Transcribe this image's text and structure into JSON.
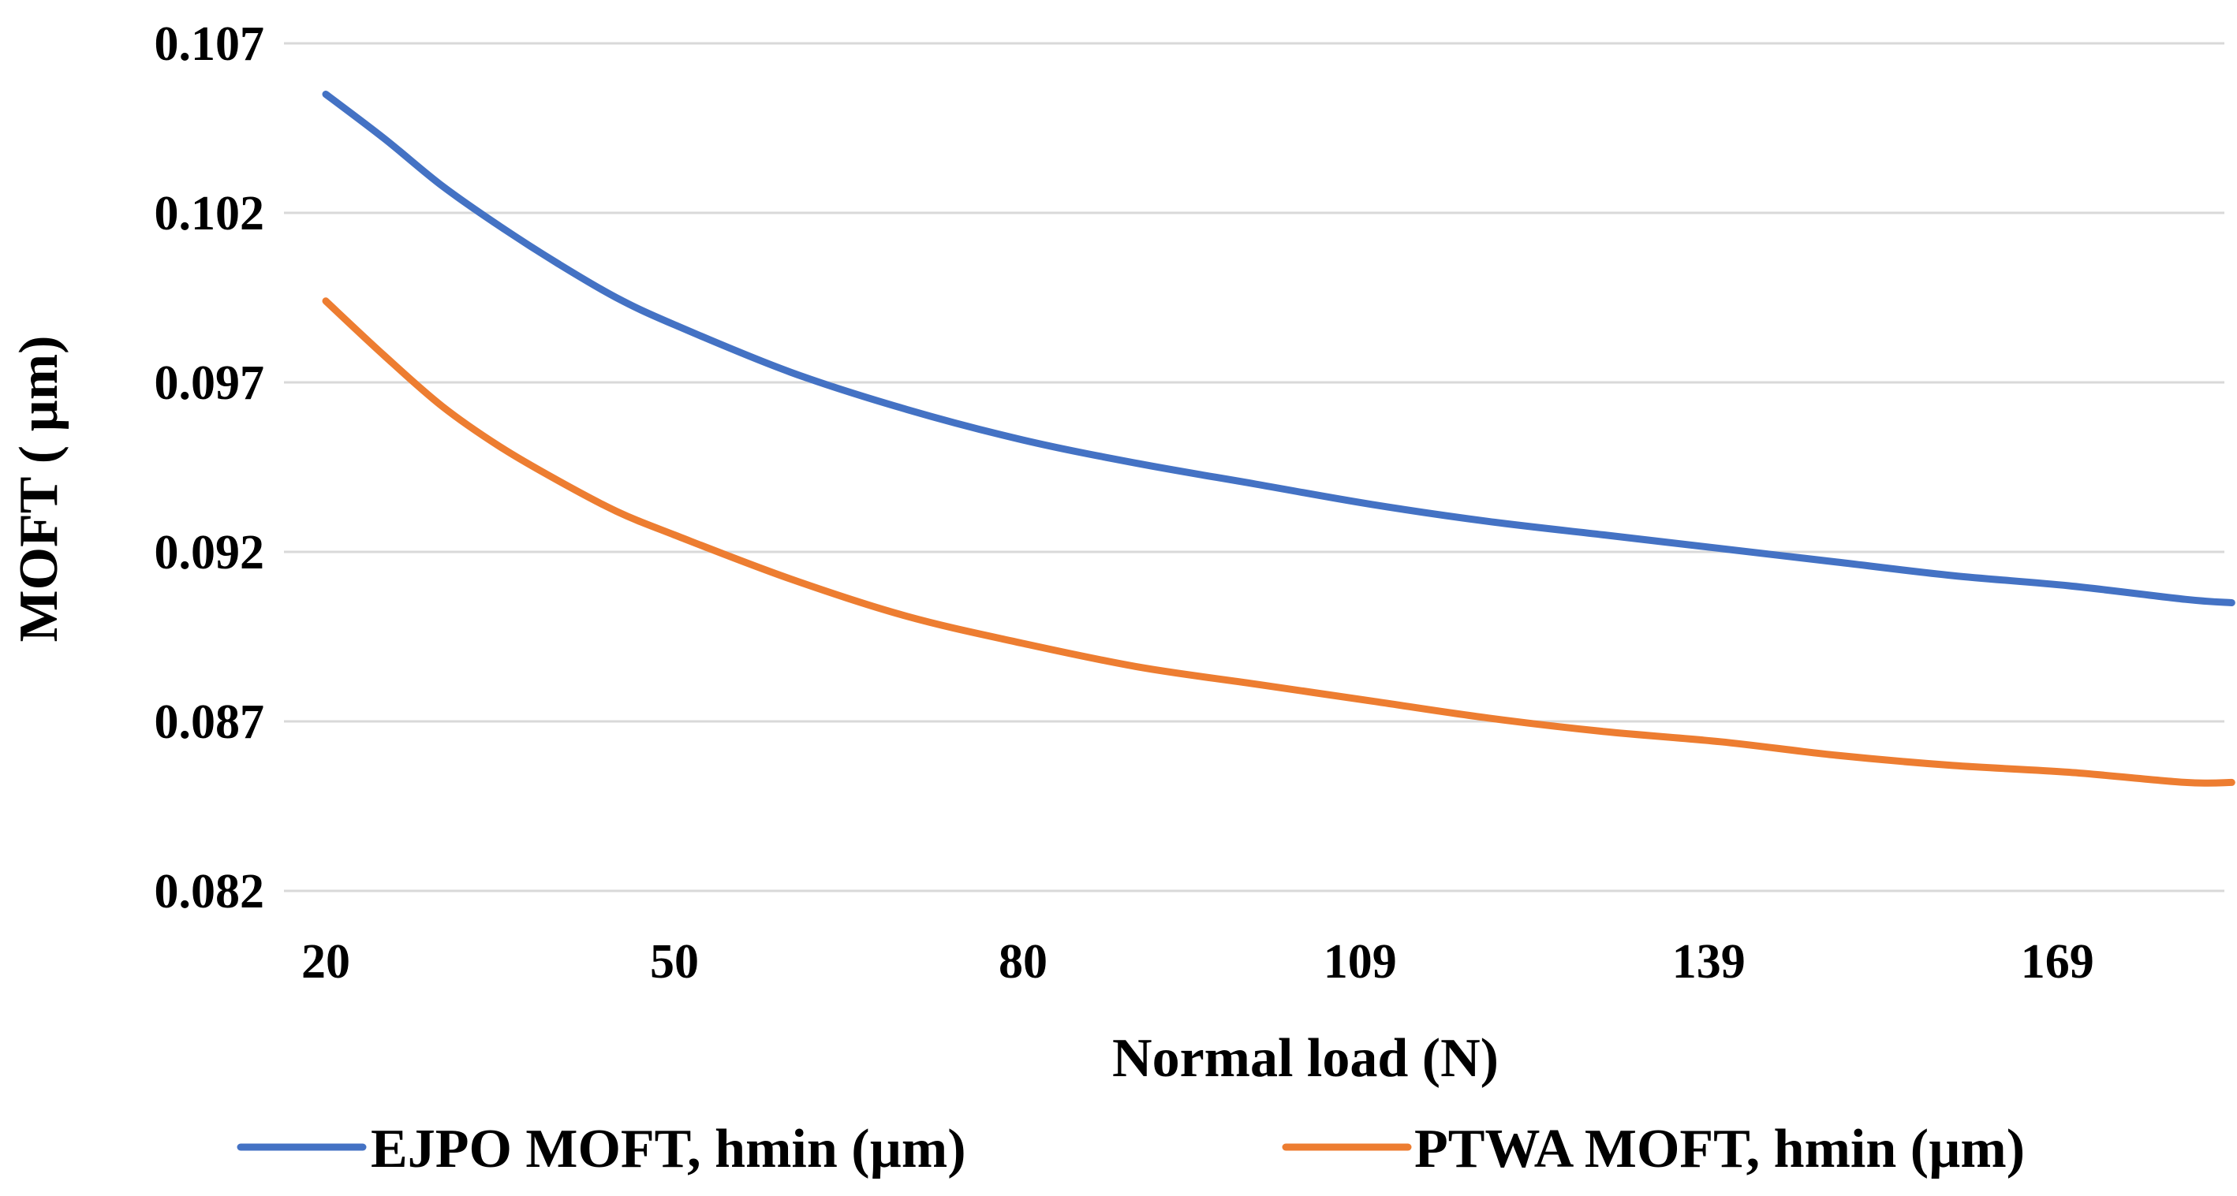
{
  "chart_data": {
    "type": "line",
    "title": "",
    "xlabel": "Normal load (N)",
    "ylabel": "MOFT ( µm)",
    "x_tick_labels": [
      "20",
      "50",
      "80",
      "109",
      "139",
      "169"
    ],
    "x_ticks": [
      20,
      50,
      80,
      109,
      139,
      169
    ],
    "xlim": [
      20,
      185
    ],
    "y_tick_labels": [
      "0.107",
      "0.102",
      "0.097",
      "0.092",
      "0.087",
      "0.082"
    ],
    "y_ticks": [
      0.107,
      0.102,
      0.097,
      0.092,
      0.087,
      0.082
    ],
    "ylim": [
      0.082,
      0.107
    ],
    "grid": true,
    "legend_position": "bottom",
    "x": [
      20,
      25,
      30,
      35,
      40,
      45,
      50,
      60,
      70,
      80,
      90,
      100,
      110,
      120,
      130,
      140,
      150,
      160,
      170,
      180,
      184
    ],
    "series": [
      {
        "name": "EJPO MOFT, hmin (µm)",
        "color": "#4472c4",
        "values": [
          0.1055,
          0.1042,
          0.1028,
          0.1016,
          0.1005,
          0.0995,
          0.0987,
          0.0973,
          0.0962,
          0.0953,
          0.0946,
          0.094,
          0.0934,
          0.0929,
          0.0925,
          0.0921,
          0.0917,
          0.0913,
          0.091,
          0.0906,
          0.0905
        ]
      },
      {
        "name": "PTWA MOFT, hmin (µm)",
        "color": "#ed7d31",
        "values": [
          0.0994,
          0.0978,
          0.0963,
          0.0951,
          0.0941,
          0.0932,
          0.0925,
          0.0912,
          0.0901,
          0.0893,
          0.0886,
          0.0881,
          0.0876,
          0.0871,
          0.0867,
          0.0864,
          0.086,
          0.0857,
          0.0855,
          0.0852,
          0.0852
        ]
      }
    ]
  }
}
